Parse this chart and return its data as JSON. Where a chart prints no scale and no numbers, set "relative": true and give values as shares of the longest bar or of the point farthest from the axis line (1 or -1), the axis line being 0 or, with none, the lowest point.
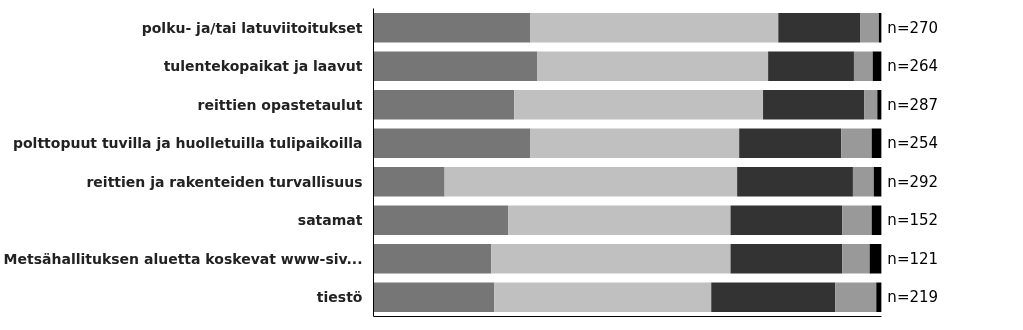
{
  "chart_data": {
    "type": "bar",
    "orientation": "horizontal",
    "stacked": true,
    "relative": true,
    "grid": false,
    "legend": false,
    "tick_labels": "y",
    "categories": [
      "polku- ja/tai latuviitoitukset",
      "tulentekopaikat ja laavut",
      "reittien opastetaulut",
      "polttopuut tuvilla ja huolletuilla tulipaikoilla",
      "reittien ja rakenteiden turvallisuus",
      "satamat",
      "Metsähallituksen aluetta koskevat www-siv...",
      "tiestö"
    ],
    "series": [
      {
        "color": "#767676",
        "values": [
          0.309,
          0.322,
          0.277,
          0.309,
          0.14,
          0.265,
          0.232,
          0.238
        ]
      },
      {
        "color": "#c0c0c0",
        "values": [
          0.488,
          0.455,
          0.49,
          0.411,
          0.576,
          0.438,
          0.471,
          0.427
        ]
      },
      {
        "color": "#333333",
        "values": [
          0.161,
          0.169,
          0.199,
          0.201,
          0.228,
          0.22,
          0.22,
          0.244
        ]
      },
      {
        "color": "#999999",
        "values": [
          0.037,
          0.037,
          0.026,
          0.06,
          0.041,
          0.058,
          0.054,
          0.081
        ]
      },
      {
        "color": "#000000",
        "values": [
          0.005,
          0.017,
          0.008,
          0.019,
          0.015,
          0.019,
          0.023,
          0.01
        ]
      }
    ],
    "annotations": [
      "n=270",
      "n=264",
      "n=287",
      "n=254",
      "n=292",
      "n=152",
      "n=121",
      "n=219"
    ]
  }
}
